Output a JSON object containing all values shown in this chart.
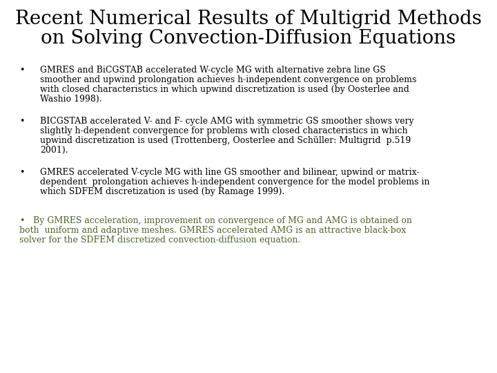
{
  "title_line1": "Recent Numerical Results of Multigrid Methods",
  "title_line2": "on Solving Convection-Diffusion Equations",
  "title_fontsize": 20,
  "title_color": "#000000",
  "background_color": "#ffffff",
  "bullet_color": "#000000",
  "bullet_fontsize": 9.0,
  "last_bullet_color": "#4f6228",
  "last_bullet_fontsize": 9.0,
  "bullet1_lines": [
    "GMRES and BiCGSTAB accelerated W-cycle MG with alternative zebra line GS",
    "smoother and upwind prolongation achieves h-independent convergence on problems",
    "with closed characteristics in which upwind discretization is used (by Oosterlee and",
    "Washio 1998)."
  ],
  "bullet2_lines": [
    "BICGSTAB accelerated V- and F- cycle AMG with symmetric GS smoother shows very",
    "slightly h-dependent convergence for problems with closed characteristics in which",
    "upwind discretization is used (Trottenberg, Oosterlee and Schüller: Multigrid  p.519",
    "2001)."
  ],
  "bullet3_lines": [
    "GMRES accelerated V-cycle MG with line GS smoother and bilinear, upwind or matrix-",
    "dependent  prolongation achieves h-independent convergence for the model problems in",
    "which SDFEM discretization is used (by Ramage 1999)."
  ],
  "last_bullet_line1": "•   By GMRES acceleration, improvement on convergence of MG and AMG is obtained on",
  "last_bullet_line2": "both  uniform and adaptive meshes. GMRES accelerated AMG is an attractive black-box",
  "last_bullet_line3": "solver for the SDFEM discretized convection-diffusion equation.",
  "font_family": "serif"
}
